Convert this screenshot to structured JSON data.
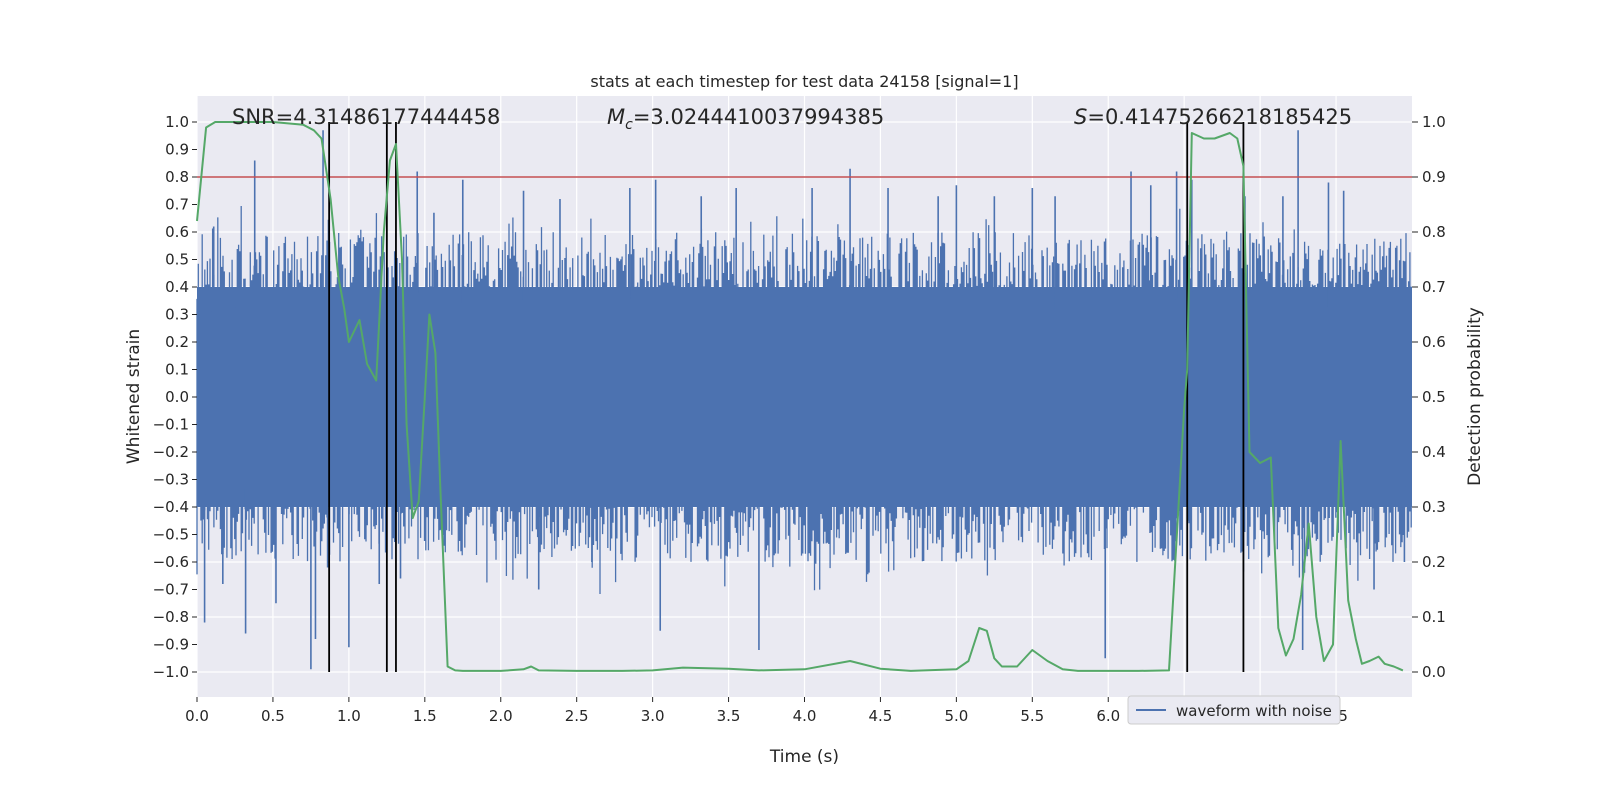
{
  "chart_data": {
    "type": "line",
    "title": "stats at each timestep for test data 24158 [signal=1]",
    "xlabel": "Time (s)",
    "ylabel_left": "Whitened strain",
    "ylabel_right": "Detection probability",
    "xlim": [
      0.0,
      8.0
    ],
    "ylim_left": [
      -1.08,
      1.1
    ],
    "ylim_right": [
      -0.04,
      1.04
    ],
    "x_ticks": [
      0.0,
      0.5,
      1.0,
      1.5,
      2.0,
      2.5,
      3.0,
      3.5,
      4.0,
      4.5,
      5.0,
      5.5,
      6.0,
      6.5,
      7.0,
      7.5
    ],
    "x_tick_labels": [
      "0.0",
      "0.5",
      "1.0",
      "1.5",
      "2.0",
      "2.5",
      "3.0",
      "3.5",
      "4.0",
      "4.5",
      "5.0",
      "5.5",
      "6.0",
      "6.5",
      "7.0",
      "7.5"
    ],
    "y_left_ticks": [
      1.0,
      0.9,
      0.8,
      0.7,
      0.6,
      0.5,
      0.4,
      0.3,
      0.2,
      0.1,
      0.0,
      -0.1,
      -0.2,
      -0.3,
      -0.4,
      -0.5,
      -0.6,
      -0.7,
      -0.8,
      -0.9,
      -1.0
    ],
    "y_left_tick_labels": [
      "1.0",
      "0.9",
      "0.8",
      "0.7",
      "0.6",
      "0.5",
      "0.4",
      "0.3",
      "0.2",
      "0.1",
      "0.0",
      "−0.1",
      "−0.2",
      "−0.3",
      "−0.4",
      "−0.5",
      "−0.6",
      "−0.7",
      "−0.8",
      "−0.9",
      "−1.0"
    ],
    "y_right_ticks": [
      1.0,
      0.9,
      0.8,
      0.7,
      0.6,
      0.5,
      0.4,
      0.3,
      0.2,
      0.1,
      0.0
    ],
    "y_right_tick_labels": [
      "1.0",
      "0.9",
      "0.8",
      "0.7",
      "0.6",
      "0.5",
      "0.4",
      "0.3",
      "0.2",
      "0.1",
      "0.0"
    ],
    "grid": true,
    "legend": {
      "entries": [
        "waveform with noise"
      ],
      "placement": "lower-right"
    },
    "annotations": {
      "snr": "SNR=4.31486177444458",
      "mc_label": "M",
      "mc_sub": "c",
      "mc_value": "=3.0244410037994385",
      "s_label": "S",
      "s_value": "=0.41475266218185425"
    },
    "threshold": {
      "axis": "right",
      "value": 0.9,
      "color": "#c44e52"
    },
    "vertical_lines": [
      0.87,
      1.25,
      1.31,
      6.52,
      6.89
    ],
    "waveform": {
      "color": "#4c72b0",
      "typical_upper": 0.4,
      "typical_lower": -0.4,
      "peaks": [
        [
          0.05,
          -0.82
        ],
        [
          0.11,
          0.62
        ],
        [
          0.17,
          -0.68
        ],
        [
          0.32,
          -0.86
        ],
        [
          0.38,
          0.86
        ],
        [
          0.52,
          -0.75
        ],
        [
          0.75,
          -0.99
        ],
        [
          0.78,
          -0.88
        ],
        [
          0.83,
          0.97
        ],
        [
          0.86,
          -0.62
        ],
        [
          1.0,
          -0.91
        ],
        [
          1.2,
          -0.68
        ],
        [
          1.34,
          -0.66
        ],
        [
          1.45,
          0.82
        ],
        [
          1.56,
          0.67
        ],
        [
          1.75,
          0.79
        ],
        [
          2.15,
          0.75
        ],
        [
          2.25,
          -0.7
        ],
        [
          2.39,
          0.72
        ],
        [
          2.6,
          -0.6
        ],
        [
          2.85,
          0.76
        ],
        [
          3.02,
          0.79
        ],
        [
          3.05,
          -0.85
        ],
        [
          3.32,
          0.73
        ],
        [
          3.55,
          0.76
        ],
        [
          3.7,
          -0.92
        ],
        [
          4.05,
          0.76
        ],
        [
          4.3,
          0.83
        ],
        [
          4.55,
          0.76
        ],
        [
          4.88,
          0.73
        ],
        [
          5.0,
          0.77
        ],
        [
          5.25,
          0.73
        ],
        [
          5.5,
          0.76
        ],
        [
          5.65,
          0.73
        ],
        [
          5.98,
          -0.95
        ],
        [
          6.15,
          0.82
        ],
        [
          6.28,
          0.77
        ],
        [
          6.45,
          0.82
        ],
        [
          6.55,
          0.79
        ],
        [
          6.9,
          0.73
        ],
        [
          7.15,
          0.73
        ],
        [
          7.25,
          0.97
        ],
        [
          7.28,
          -0.92
        ],
        [
          7.45,
          0.78
        ],
        [
          7.55,
          0.75
        ],
        [
          7.75,
          -0.7
        ],
        [
          7.95,
          -0.6
        ]
      ]
    },
    "series": [
      {
        "name": "",
        "axis": "right",
        "color": "#55a868",
        "x": [
          0.0,
          0.06,
          0.12,
          0.25,
          0.5,
          0.7,
          0.77,
          0.82,
          0.88,
          0.93,
          0.97,
          1.0,
          1.07,
          1.12,
          1.18,
          1.23,
          1.27,
          1.31,
          1.35,
          1.38,
          1.42,
          1.46,
          1.5,
          1.53,
          1.57,
          1.6,
          1.65,
          1.7,
          1.75,
          1.85,
          2.0,
          2.15,
          2.2,
          2.25,
          2.5,
          2.8,
          3.0,
          3.2,
          3.5,
          3.7,
          4.0,
          4.3,
          4.5,
          4.7,
          5.0,
          5.08,
          5.15,
          5.2,
          5.25,
          5.3,
          5.4,
          5.5,
          5.6,
          5.7,
          5.8,
          6.0,
          6.2,
          6.4,
          6.5,
          6.52,
          6.55,
          6.63,
          6.7,
          6.8,
          6.85,
          6.89,
          6.93,
          7.0,
          7.07,
          7.12,
          7.17,
          7.22,
          7.27,
          7.32,
          7.37,
          7.42,
          7.48,
          7.53,
          7.58,
          7.63,
          7.67,
          7.72,
          7.78,
          7.82,
          7.88,
          7.94
        ],
        "values": [
          0.82,
          0.99,
          1.0,
          1.0,
          1.0,
          0.995,
          0.985,
          0.97,
          0.86,
          0.72,
          0.66,
          0.6,
          0.64,
          0.56,
          0.53,
          0.8,
          0.93,
          0.96,
          0.75,
          0.45,
          0.28,
          0.31,
          0.5,
          0.65,
          0.58,
          0.35,
          0.01,
          0.003,
          0.002,
          0.002,
          0.002,
          0.005,
          0.01,
          0.003,
          0.002,
          0.002,
          0.003,
          0.008,
          0.006,
          0.003,
          0.005,
          0.02,
          0.006,
          0.002,
          0.005,
          0.02,
          0.08,
          0.075,
          0.025,
          0.01,
          0.01,
          0.04,
          0.02,
          0.005,
          0.002,
          0.002,
          0.002,
          0.003,
          0.48,
          0.55,
          0.98,
          0.97,
          0.97,
          0.98,
          0.97,
          0.92,
          0.4,
          0.38,
          0.39,
          0.08,
          0.03,
          0.06,
          0.14,
          0.27,
          0.1,
          0.02,
          0.05,
          0.42,
          0.13,
          0.06,
          0.015,
          0.02,
          0.028,
          0.015,
          0.01,
          0.003
        ]
      }
    ]
  }
}
